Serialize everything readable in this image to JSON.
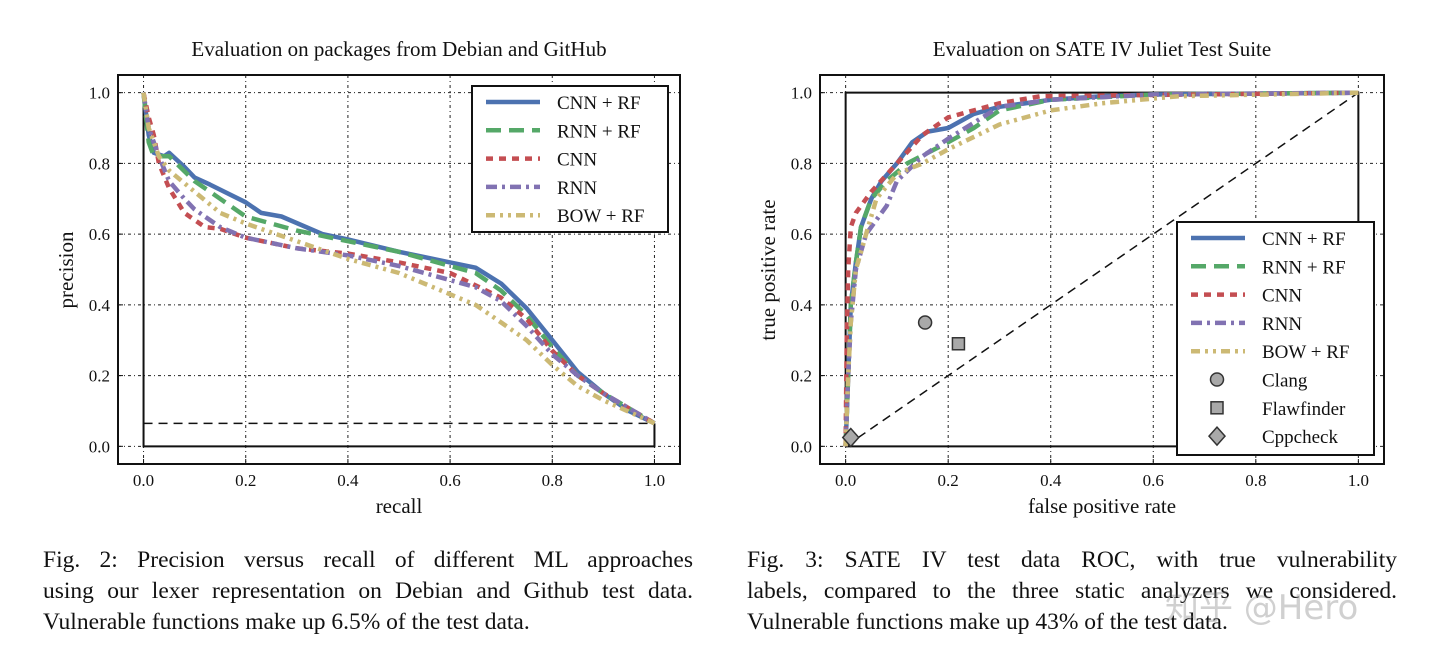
{
  "chart_data": [
    {
      "type": "line",
      "title": "Evaluation on packages from Debian and GitHub",
      "xlabel": "recall",
      "ylabel": "precision",
      "xlim": [
        -0.05,
        1.05
      ],
      "ylim": [
        -0.05,
        1.05
      ],
      "xticks": [
        0.0,
        0.2,
        0.4,
        0.6,
        0.8,
        1.0
      ],
      "yticks": [
        0.0,
        0.2,
        0.4,
        0.6,
        0.8,
        1.0
      ],
      "grid": true,
      "legend": "upper right",
      "reference_lines": [
        {
          "style": "dashed",
          "points": [
            [
              0,
              0.065
            ],
            [
              1,
              0.065
            ]
          ]
        },
        {
          "style": "solid",
          "points": [
            [
              0,
              1.0
            ],
            [
              0,
              0
            ],
            [
              1,
              0
            ],
            [
              1,
              0.065
            ]
          ]
        }
      ],
      "series": [
        {
          "name": "CNN + RF",
          "color": "#4c72b0",
          "style": "solid",
          "points": [
            [
              0,
              1.0
            ],
            [
              0.01,
              0.88
            ],
            [
              0.02,
              0.83
            ],
            [
              0.04,
              0.82
            ],
            [
              0.05,
              0.83
            ],
            [
              0.08,
              0.79
            ],
            [
              0.1,
              0.76
            ],
            [
              0.13,
              0.74
            ],
            [
              0.2,
              0.69
            ],
            [
              0.23,
              0.66
            ],
            [
              0.27,
              0.65
            ],
            [
              0.35,
              0.6
            ],
            [
              0.4,
              0.585
            ],
            [
              0.5,
              0.55
            ],
            [
              0.6,
              0.52
            ],
            [
              0.65,
              0.505
            ],
            [
              0.7,
              0.46
            ],
            [
              0.75,
              0.39
            ],
            [
              0.8,
              0.3
            ],
            [
              0.85,
              0.21
            ],
            [
              0.9,
              0.15
            ],
            [
              0.95,
              0.1
            ],
            [
              1.0,
              0.065
            ]
          ]
        },
        {
          "name": "RNN + RF",
          "color": "#55a868",
          "style": "dashed",
          "points": [
            [
              0,
              1.0
            ],
            [
              0.01,
              0.86
            ],
            [
              0.02,
              0.82
            ],
            [
              0.05,
              0.82
            ],
            [
              0.1,
              0.75
            ],
            [
              0.15,
              0.7
            ],
            [
              0.2,
              0.65
            ],
            [
              0.3,
              0.61
            ],
            [
              0.4,
              0.58
            ],
            [
              0.5,
              0.55
            ],
            [
              0.6,
              0.51
            ],
            [
              0.65,
              0.49
            ],
            [
              0.7,
              0.44
            ],
            [
              0.75,
              0.37
            ],
            [
              0.8,
              0.28
            ],
            [
              0.85,
              0.2
            ],
            [
              0.9,
              0.15
            ],
            [
              1.0,
              0.065
            ]
          ]
        },
        {
          "name": "CNN",
          "color": "#c44e52",
          "style": "short-dashed",
          "points": [
            [
              0,
              1.0
            ],
            [
              0.01,
              0.93
            ],
            [
              0.02,
              0.88
            ],
            [
              0.03,
              0.8
            ],
            [
              0.05,
              0.73
            ],
            [
              0.08,
              0.66
            ],
            [
              0.12,
              0.62
            ],
            [
              0.15,
              0.615
            ],
            [
              0.2,
              0.59
            ],
            [
              0.3,
              0.56
            ],
            [
              0.4,
              0.545
            ],
            [
              0.5,
              0.52
            ],
            [
              0.6,
              0.49
            ],
            [
              0.7,
              0.42
            ],
            [
              0.75,
              0.36
            ],
            [
              0.8,
              0.27
            ],
            [
              0.85,
              0.2
            ],
            [
              0.9,
              0.15
            ],
            [
              1.0,
              0.065
            ]
          ]
        },
        {
          "name": "RNN",
          "color": "#8172b2",
          "style": "dash-dot",
          "points": [
            [
              0,
              1.0
            ],
            [
              0.01,
              0.9
            ],
            [
              0.03,
              0.82
            ],
            [
              0.05,
              0.75
            ],
            [
              0.08,
              0.7
            ],
            [
              0.1,
              0.67
            ],
            [
              0.15,
              0.62
            ],
            [
              0.2,
              0.59
            ],
            [
              0.3,
              0.56
            ],
            [
              0.4,
              0.54
            ],
            [
              0.5,
              0.51
            ],
            [
              0.6,
              0.47
            ],
            [
              0.65,
              0.45
            ],
            [
              0.7,
              0.41
            ],
            [
              0.75,
              0.34
            ],
            [
              0.8,
              0.26
            ],
            [
              0.85,
              0.2
            ],
            [
              0.9,
              0.15
            ],
            [
              1.0,
              0.065
            ]
          ]
        },
        {
          "name": "BOW + RF",
          "color": "#ccb974",
          "style": "dash-dot-dot",
          "points": [
            [
              0,
              1.0
            ],
            [
              0.01,
              0.9
            ],
            [
              0.03,
              0.82
            ],
            [
              0.05,
              0.78
            ],
            [
              0.1,
              0.72
            ],
            [
              0.15,
              0.66
            ],
            [
              0.2,
              0.63
            ],
            [
              0.3,
              0.58
            ],
            [
              0.4,
              0.53
            ],
            [
              0.5,
              0.49
            ],
            [
              0.6,
              0.43
            ],
            [
              0.65,
              0.4
            ],
            [
              0.7,
              0.35
            ],
            [
              0.75,
              0.3
            ],
            [
              0.8,
              0.23
            ],
            [
              0.85,
              0.17
            ],
            [
              0.9,
              0.13
            ],
            [
              1.0,
              0.065
            ]
          ]
        }
      ],
      "markers": []
    },
    {
      "type": "line",
      "title": "Evaluation on SATE IV Juliet Test Suite",
      "xlabel": "false positive rate",
      "ylabel": "true positive rate",
      "xlim": [
        -0.05,
        1.05
      ],
      "ylim": [
        -0.05,
        1.05
      ],
      "xticks": [
        0.0,
        0.2,
        0.4,
        0.6,
        0.8,
        1.0
      ],
      "yticks": [
        0.0,
        0.2,
        0.4,
        0.6,
        0.8,
        1.0
      ],
      "grid": true,
      "legend": "lower right",
      "reference_lines": [
        {
          "style": "dashed",
          "points": [
            [
              0,
              0
            ],
            [
              1,
              1
            ]
          ]
        },
        {
          "style": "solid",
          "points": [
            [
              0,
              0
            ],
            [
              0,
              1
            ],
            [
              1,
              1
            ],
            [
              1,
              0
            ],
            [
              0,
              0
            ]
          ]
        }
      ],
      "series": [
        {
          "name": "CNN + RF",
          "color": "#4c72b0",
          "style": "solid",
          "points": [
            [
              0,
              0
            ],
            [
              0.005,
              0.2
            ],
            [
              0.01,
              0.4
            ],
            [
              0.02,
              0.52
            ],
            [
              0.03,
              0.62
            ],
            [
              0.05,
              0.7
            ],
            [
              0.07,
              0.75
            ],
            [
              0.1,
              0.8
            ],
            [
              0.13,
              0.86
            ],
            [
              0.16,
              0.89
            ],
            [
              0.2,
              0.9
            ],
            [
              0.25,
              0.94
            ],
            [
              0.3,
              0.96
            ],
            [
              0.4,
              0.98
            ],
            [
              0.5,
              0.99
            ],
            [
              0.6,
              0.995
            ],
            [
              1.0,
              1.0
            ]
          ]
        },
        {
          "name": "RNN + RF",
          "color": "#55a868",
          "style": "dashed",
          "points": [
            [
              0,
              0
            ],
            [
              0.005,
              0.2
            ],
            [
              0.01,
              0.4
            ],
            [
              0.02,
              0.52
            ],
            [
              0.03,
              0.62
            ],
            [
              0.05,
              0.7
            ],
            [
              0.08,
              0.75
            ],
            [
              0.12,
              0.8
            ],
            [
              0.2,
              0.86
            ],
            [
              0.25,
              0.9
            ],
            [
              0.3,
              0.95
            ],
            [
              0.4,
              0.98
            ],
            [
              0.6,
              0.995
            ],
            [
              1.0,
              1.0
            ]
          ]
        },
        {
          "name": "CNN",
          "color": "#c44e52",
          "style": "short-dashed",
          "points": [
            [
              0,
              0
            ],
            [
              0.002,
              0.3
            ],
            [
              0.005,
              0.5
            ],
            [
              0.01,
              0.62
            ],
            [
              0.02,
              0.66
            ],
            [
              0.05,
              0.72
            ],
            [
              0.1,
              0.8
            ],
            [
              0.15,
              0.88
            ],
            [
              0.2,
              0.93
            ],
            [
              0.3,
              0.97
            ],
            [
              0.38,
              0.99
            ],
            [
              1.0,
              1.0
            ]
          ]
        },
        {
          "name": "RNN",
          "color": "#8172b2",
          "style": "dash-dot",
          "points": [
            [
              0,
              0
            ],
            [
              0.005,
              0.2
            ],
            [
              0.01,
              0.35
            ],
            [
              0.02,
              0.5
            ],
            [
              0.04,
              0.6
            ],
            [
              0.08,
              0.68
            ],
            [
              0.1,
              0.75
            ],
            [
              0.15,
              0.82
            ],
            [
              0.2,
              0.87
            ],
            [
              0.3,
              0.96
            ],
            [
              0.4,
              0.98
            ],
            [
              0.6,
              0.995
            ],
            [
              1.0,
              1.0
            ]
          ]
        },
        {
          "name": "BOW + RF",
          "color": "#ccb974",
          "style": "dash-dot-dot",
          "points": [
            [
              0,
              0
            ],
            [
              0.005,
              0.2
            ],
            [
              0.01,
              0.35
            ],
            [
              0.02,
              0.5
            ],
            [
              0.04,
              0.6
            ],
            [
              0.06,
              0.7
            ],
            [
              0.1,
              0.77
            ],
            [
              0.15,
              0.8
            ],
            [
              0.2,
              0.84
            ],
            [
              0.3,
              0.91
            ],
            [
              0.4,
              0.95
            ],
            [
              0.5,
              0.97
            ],
            [
              0.65,
              0.99
            ],
            [
              1.0,
              1.0
            ]
          ]
        }
      ],
      "markers": [
        {
          "name": "Clang",
          "shape": "circle",
          "color": "#a9a9a9",
          "x": 0.155,
          "y": 0.35
        },
        {
          "name": "Flawfinder",
          "shape": "square",
          "color": "#a9a9a9",
          "x": 0.22,
          "y": 0.29
        },
        {
          "name": "Cppcheck",
          "shape": "diamond",
          "color": "#a9a9a9",
          "x": 0.01,
          "y": 0.025
        }
      ]
    }
  ],
  "captions": {
    "left": [
      "Fig. 2: Precision versus recall of different ML approaches",
      "using our lexer representation on Debian and Github test data.",
      "Vulnerable functions make up 6.5% of the test data."
    ],
    "right": [
      "Fig. 3: SATE IV test data ROC, with true vulnerability",
      "labels, compared to the three static analyzers we considered.",
      "Vulnerable functions make up 43% of the test data."
    ]
  },
  "watermark": "知乎 @Hero"
}
